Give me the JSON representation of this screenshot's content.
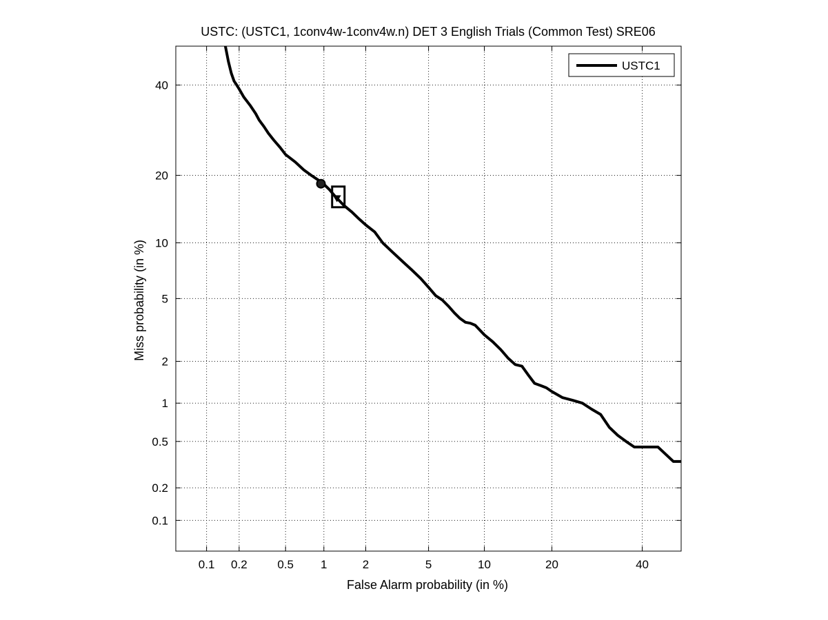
{
  "chart_data": {
    "type": "line",
    "title": "USTC: (USTC1, 1conv4w-1conv4w.n) DET 3 English Trials (Common Test) SRE06",
    "xlabel": "False Alarm probability (in %)",
    "ylabel": "Miss probability (in %)",
    "x_scale": "probit",
    "y_scale": "probit",
    "xlim": [
      0.05,
      50
    ],
    "ylim": [
      0.05,
      50
    ],
    "x_ticks": [
      0.1,
      0.2,
      0.5,
      1,
      2,
      5,
      10,
      20,
      40
    ],
    "x_tick_labels": [
      "0.1",
      "0.2",
      "0.5",
      "1",
      "2",
      "5",
      "10",
      "20",
      "40"
    ],
    "y_ticks": [
      0.1,
      0.2,
      0.5,
      1,
      2,
      5,
      10,
      20,
      40
    ],
    "y_tick_labels": [
      "0.1",
      "0.2",
      "0.5",
      "1",
      "2",
      "5",
      "10",
      "20",
      "40"
    ],
    "grid": true,
    "legend_position": "top-right",
    "series": [
      {
        "name": "USTC1",
        "color": "#000000",
        "x": [
          0.15,
          0.16,
          0.17,
          0.18,
          0.19,
          0.2,
          0.22,
          0.25,
          0.28,
          0.3,
          0.33,
          0.36,
          0.4,
          0.45,
          0.5,
          0.6,
          0.7,
          0.8,
          0.9,
          1.0,
          1.1,
          1.2,
          1.4,
          1.6,
          1.8,
          2.0,
          2.3,
          2.6,
          3.0,
          3.5,
          4.0,
          4.5,
          5.0,
          5.5,
          6.0,
          6.5,
          7.0,
          7.5,
          8.0,
          8.5,
          9.0,
          10.0,
          11.0,
          12.0,
          13.0,
          14.0,
          15.0,
          16.0,
          17.0,
          18.0,
          19.0,
          20.0,
          22.0,
          24.0,
          26.0,
          28.0,
          30.0,
          32.0,
          34.0,
          36.0,
          38.0,
          40.0,
          44.0,
          48.0,
          50.0
        ],
        "y": [
          50.0,
          46.0,
          43.0,
          41.0,
          40.0,
          39.0,
          37.0,
          35.0,
          33.0,
          31.5,
          30.0,
          28.5,
          27.0,
          25.5,
          24.0,
          22.5,
          21.0,
          20.0,
          19.2,
          18.4,
          17.5,
          16.5,
          15.0,
          14.0,
          13.0,
          12.2,
          11.3,
          10.0,
          9.0,
          8.0,
          7.2,
          6.5,
          5.8,
          5.2,
          4.9,
          4.5,
          4.1,
          3.8,
          3.6,
          3.55,
          3.45,
          3.0,
          2.7,
          2.4,
          2.1,
          1.9,
          1.85,
          1.6,
          1.4,
          1.35,
          1.3,
          1.22,
          1.1,
          1.05,
          1.0,
          0.9,
          0.82,
          0.65,
          0.56,
          0.5,
          0.45,
          0.45,
          0.45,
          0.34,
          0.34
        ]
      }
    ],
    "markers": [
      {
        "shape": "circle",
        "x": 0.95,
        "y": 18.5
      },
      {
        "shape": "square",
        "x": 1.28,
        "y": 16.3
      },
      {
        "shape": "triangle-down",
        "x": 1.25,
        "y": 16.0
      }
    ]
  }
}
